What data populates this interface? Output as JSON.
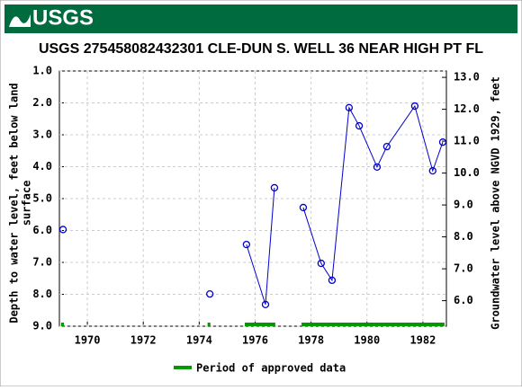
{
  "header": {
    "logo_text": "USGS"
  },
  "chart_data": {
    "type": "line",
    "title": "USGS 275458082432301 CLE-DUN S. WELL 36 NEAR HIGH PT FL",
    "y_label": [
      "Depth to water level, feet below land",
      "surface"
    ],
    "y2_label": "Groundwater level above NGVD 1929, feet",
    "xlim": [
      1969.0,
      1982.84
    ],
    "xticks": [
      1970,
      1972,
      1974,
      1976,
      1978,
      1980,
      1982
    ],
    "ylim": [
      1.0,
      9.0
    ],
    "yticks": [
      {
        "value": 1,
        "label": "1.0"
      },
      {
        "value": 2,
        "label": "2.0"
      },
      {
        "value": 3,
        "label": "3.0"
      },
      {
        "value": 4,
        "label": "4.0"
      },
      {
        "value": 5,
        "label": "5.0"
      },
      {
        "value": 6,
        "label": "6.0"
      },
      {
        "value": 7,
        "label": "7.0"
      },
      {
        "value": 8,
        "label": "8.0"
      },
      {
        "value": 9,
        "label": "9.0"
      }
    ],
    "y2lim": [
      13.2,
      5.2
    ],
    "y2ticks": [
      {
        "value": 6,
        "label": "6.0"
      },
      {
        "value": 7,
        "label": "7.0"
      },
      {
        "value": 8,
        "label": "8.0"
      },
      {
        "value": 9,
        "label": "9.0"
      },
      {
        "value": 10,
        "label": "10.0"
      },
      {
        "value": 11,
        "label": "11.0"
      },
      {
        "value": 12,
        "label": "12.0"
      },
      {
        "value": 13,
        "label": "13.0"
      }
    ],
    "grid": true,
    "inverted_y": true,
    "series": [
      {
        "name": "Depth to water level",
        "color": "#0000cc",
        "x": [
          1969.13,
          null,
          1974.38,
          null,
          1975.69,
          1976.37,
          1976.69,
          null,
          1977.72,
          1978.36,
          1978.75,
          1979.36,
          1979.72,
          1980.36,
          1980.71,
          1981.71,
          1982.35,
          1982.71
        ],
        "values": [
          5.97,
          null,
          7.99,
          null,
          6.44,
          8.32,
          4.66,
          null,
          5.28,
          7.03,
          7.56,
          2.15,
          2.72,
          4.01,
          3.37,
          2.1,
          4.13,
          3.23
        ]
      }
    ],
    "approved_periods": {
      "name": "Period of approved data",
      "color": "#009900",
      "spans": [
        [
          1969.06,
          1969.16
        ],
        [
          1974.3,
          1974.4
        ],
        [
          1975.63,
          1976.72
        ],
        [
          1977.66,
          1982.77
        ]
      ]
    }
  }
}
